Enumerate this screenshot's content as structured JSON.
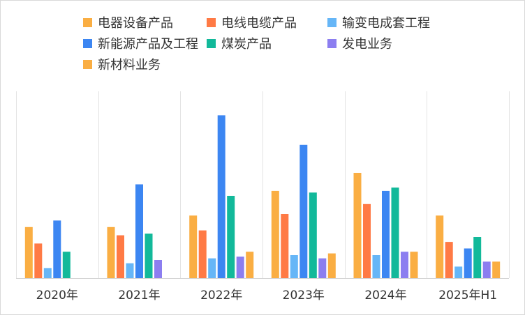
{
  "colors": {
    "series": [
      "#FAAE43",
      "#FF7A45",
      "#66B6F7",
      "#3C86F2",
      "#12B99A",
      "#8C7EF0",
      "#FAAE43"
    ],
    "grid": "#e3e3e3",
    "axis": "#cfcfcf",
    "border": "#d9d9d9"
  },
  "chart_data": {
    "type": "bar",
    "title": "",
    "xlabel": "",
    "ylabel": "",
    "ylim": [
      0,
      100
    ],
    "grid": "vertical separators between categories",
    "legend_position": "top",
    "categories": [
      "2020年",
      "2021年",
      "2022年",
      "2023年",
      "2024年",
      "2025年H1"
    ],
    "series": [
      {
        "name": "电器设备产品",
        "values": [
          31,
          31,
          38,
          53,
          64,
          38
        ]
      },
      {
        "name": "电线电缆产品",
        "values": [
          21,
          26,
          29,
          39,
          45,
          22
        ]
      },
      {
        "name": "输变电成套工程",
        "values": [
          6,
          9,
          12,
          14,
          14,
          7
        ]
      },
      {
        "name": "新能源产品及工程",
        "values": [
          35,
          57,
          99,
          81,
          53,
          18
        ]
      },
      {
        "name": "煤炭产品",
        "values": [
          16,
          27,
          50,
          52,
          55,
          25
        ]
      },
      {
        "name": "发电业务",
        "values": [
          0,
          11,
          13,
          12,
          16,
          10
        ]
      },
      {
        "name": "新材料业务",
        "values": [
          0,
          0,
          16,
          15,
          16,
          10
        ]
      }
    ]
  }
}
